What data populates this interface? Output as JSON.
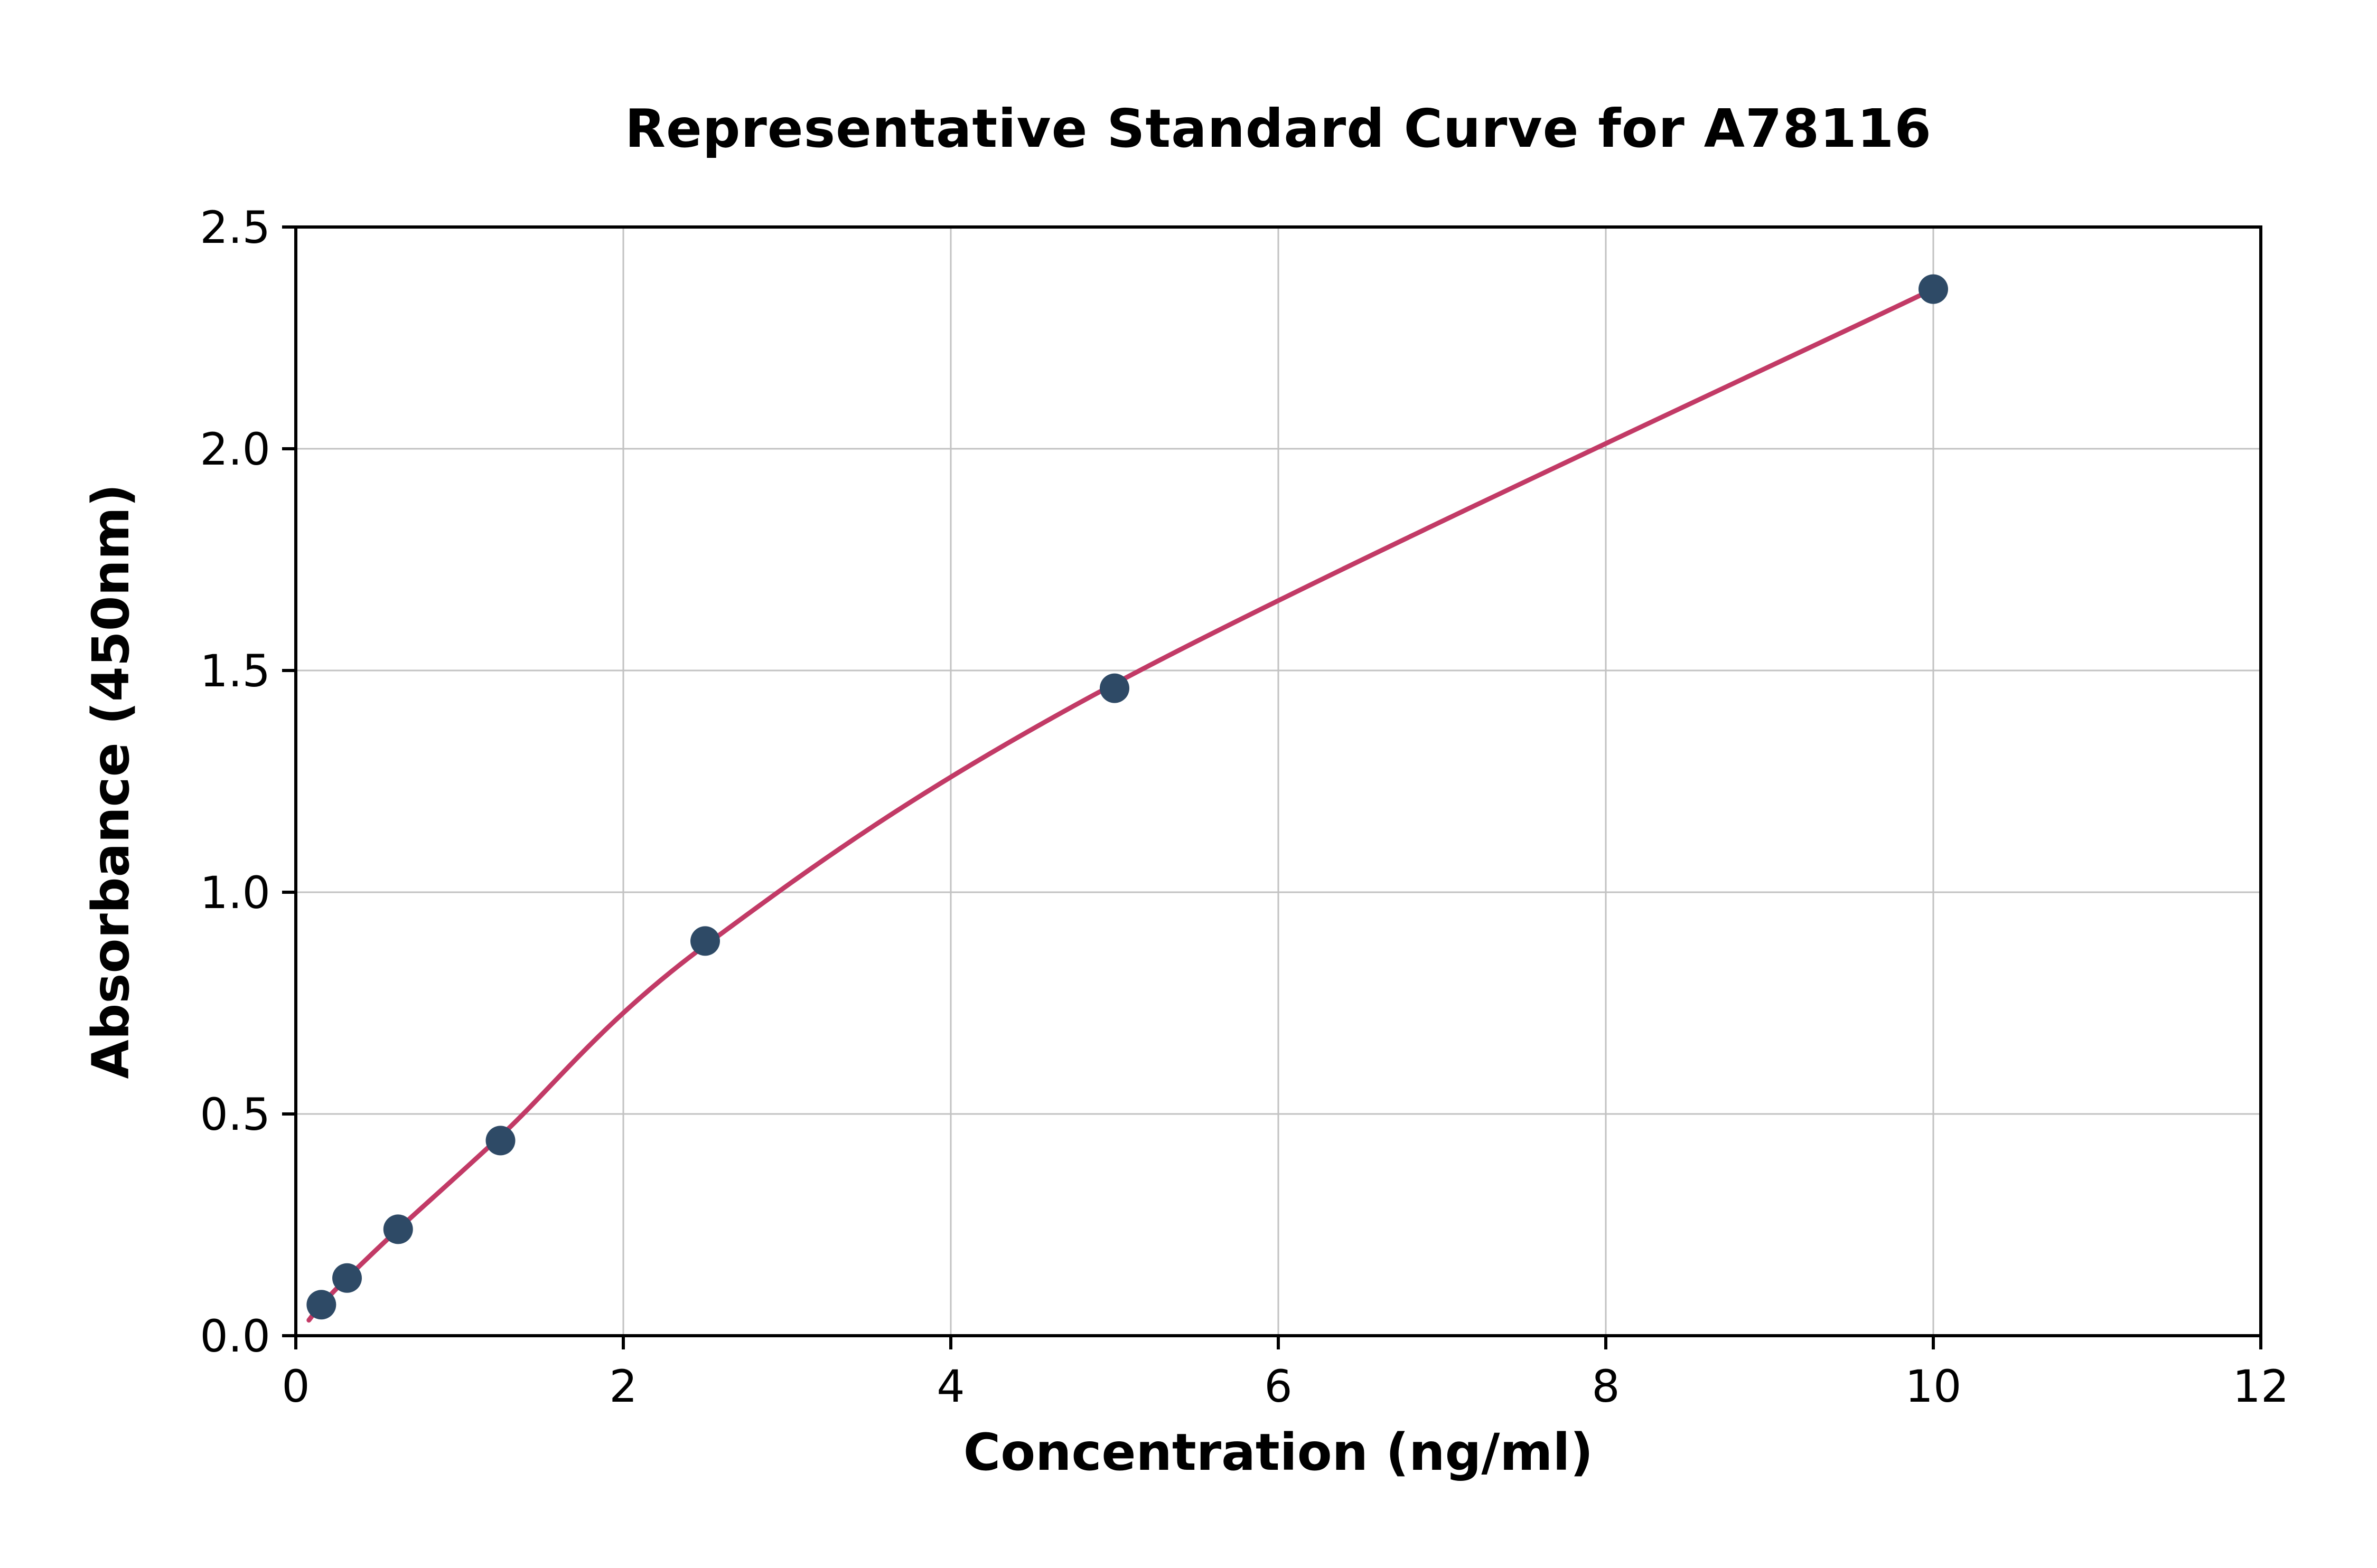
{
  "figure": {
    "background_color": "#ffffff"
  },
  "chart_data": {
    "type": "scatter",
    "title": "Representative Standard Curve for A78116",
    "xlabel": "Concentration (ng/ml)",
    "ylabel": "Absorbance (450nm)",
    "xlim": [
      0,
      12
    ],
    "ylim": [
      0,
      2.5
    ],
    "x_ticks": [
      0,
      2,
      4,
      6,
      8,
      10,
      12
    ],
    "x_tick_labels": [
      "0",
      "2",
      "4",
      "6",
      "8",
      "10",
      "12"
    ],
    "y_ticks": [
      0,
      0.5,
      1.0,
      1.5,
      2.0,
      2.5
    ],
    "y_tick_labels": [
      "0.0",
      "0.5",
      "1.0",
      "1.5",
      "2.0",
      "2.5"
    ],
    "grid": true,
    "grid_color": "#c2c2c2",
    "legend": "none",
    "axis_color": "#000000",
    "series": [
      {
        "name": "standard-points",
        "type": "scatter",
        "color": "#2e4a66",
        "marker": "circle",
        "x": [
          0.156,
          0.313,
          0.625,
          1.25,
          2.5,
          5,
          10
        ],
        "y": [
          0.07,
          0.13,
          0.24,
          0.44,
          0.89,
          1.46,
          2.36
        ]
      },
      {
        "name": "fitted-curve",
        "type": "line",
        "color": "#c23a66",
        "x": [
          0.08,
          0.156,
          0.313,
          0.625,
          1.25,
          2.5,
          5,
          10
        ],
        "y": [
          0.035,
          0.07,
          0.13,
          0.24,
          0.45,
          0.88,
          1.47,
          2.36
        ]
      }
    ]
  }
}
